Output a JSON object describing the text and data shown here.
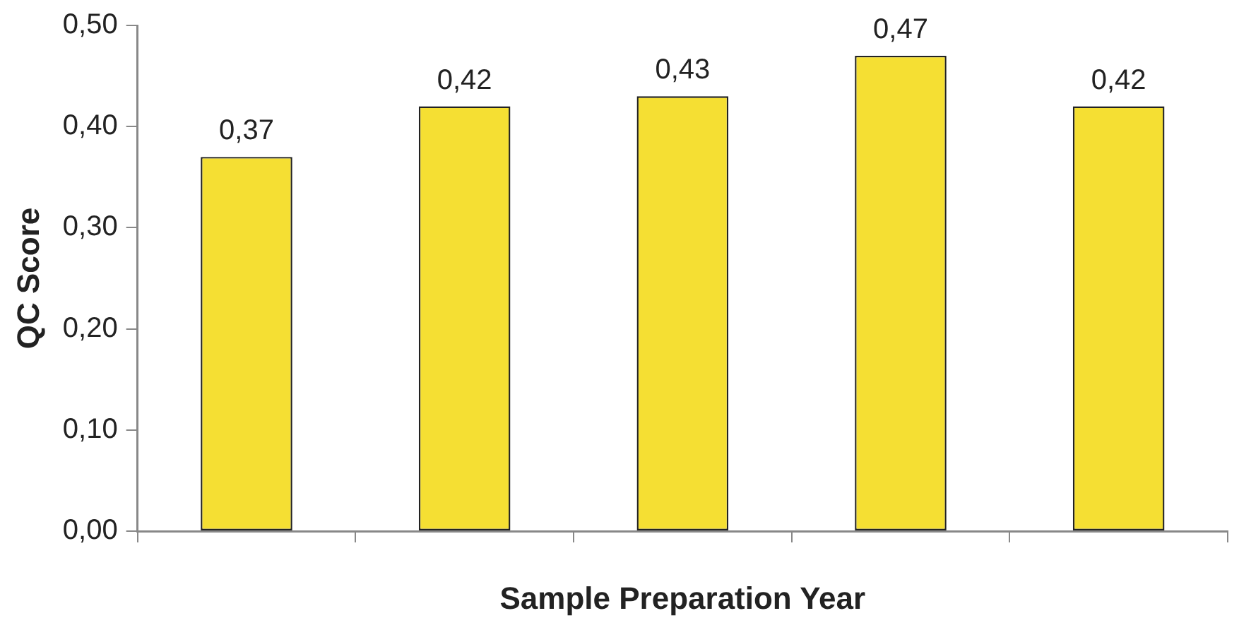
{
  "chart_data": {
    "type": "bar",
    "xlabel": "Sample Preparation Year",
    "ylabel": "QC Score",
    "categories": [
      null,
      null,
      null,
      null,
      null
    ],
    "values": [
      0.37,
      0.42,
      0.43,
      0.47,
      0.42
    ],
    "value_labels": [
      "0,37",
      "0,42",
      "0,43",
      "0,47",
      "0,42"
    ],
    "color": "#f5df33",
    "ylim": [
      0,
      0.5
    ],
    "yticks": [
      {
        "value": 0,
        "label": "0,00"
      },
      {
        "value": 0.1,
        "label": "0,10"
      },
      {
        "value": 0.2,
        "label": "0,20"
      },
      {
        "value": 0.3,
        "label": "0,30"
      },
      {
        "value": 0.4,
        "label": "0,40"
      },
      {
        "value": 0.5,
        "label": "0,50"
      }
    ],
    "grid": false,
    "legend": false
  }
}
